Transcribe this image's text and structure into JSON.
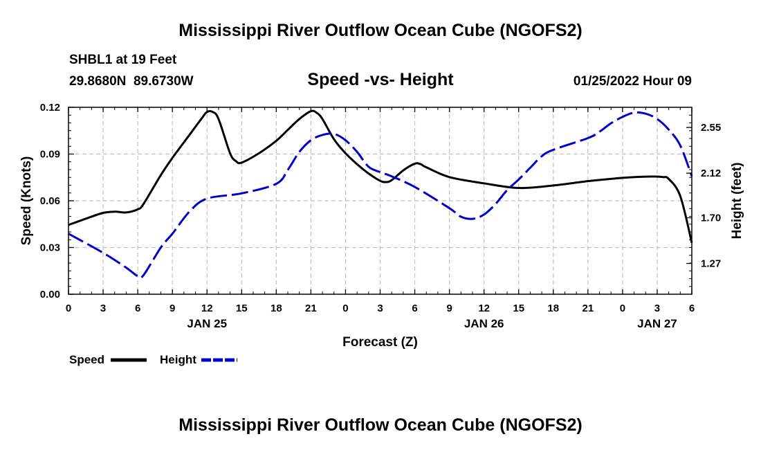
{
  "page": {
    "title_top": "Mississippi River Outflow Ocean Cube (NGOFS2)",
    "title_bottom": "Mississippi River Outflow Ocean Cube (NGOFS2)",
    "station": "SHBL1 at 19 Feet",
    "coords": "29.8680N  89.6730W",
    "subtitle": "Speed -vs- Height",
    "datetime": "01/25/2022 Hour 09"
  },
  "legend": {
    "speed_label": "Speed",
    "height_label": "Height"
  },
  "chart_data": {
    "type": "line",
    "title": "Speed -vs- Height",
    "xlabel": "Forecast (Z)",
    "ylabel": "Speed (Knots)",
    "y2label": "Height (feet)",
    "xlim": [
      0,
      54
    ],
    "ylim": [
      0,
      0.12
    ],
    "y2lim": [
      0.98,
      2.74
    ],
    "x_ticks": [
      0,
      3,
      6,
      9,
      12,
      15,
      18,
      21,
      24,
      27,
      30,
      33,
      36,
      39,
      42,
      45,
      48,
      51,
      54
    ],
    "x_tick_labels": [
      "0",
      "3",
      "6",
      "9",
      "12",
      "15",
      "18",
      "21",
      "0",
      "3",
      "6",
      "9",
      "12",
      "15",
      "18",
      "21",
      "0",
      "3",
      "6"
    ],
    "y_ticks": [
      0,
      0.03,
      0.06,
      0.09,
      0.12
    ],
    "y_tick_labels": [
      "0.00",
      "0.03",
      "0.06",
      "0.09",
      "0.12"
    ],
    "y2_ticks": [
      1.27,
      1.7,
      2.12,
      2.55
    ],
    "y2_tick_labels": [
      "1.27",
      "1.70",
      "2.12",
      "2.55"
    ],
    "date_labels": [
      {
        "x": 12,
        "label": "JAN 25"
      },
      {
        "x": 36,
        "label": "JAN 26"
      },
      {
        "x": 51,
        "label": "JAN 27"
      }
    ],
    "grid": true,
    "series": [
      {
        "name": "Speed",
        "axis": "left",
        "color": "#000000",
        "style": "solid",
        "x": [
          0,
          1.5,
          3,
          4,
          5,
          6,
          6.5,
          8,
          9,
          10.5,
          11.5,
          12,
          12.5,
          13,
          14,
          14.5,
          15,
          16.5,
          18,
          19,
          20,
          21,
          21.5,
          22,
          23,
          24,
          25,
          26,
          27,
          27.5,
          28,
          29,
          30,
          30.5,
          31,
          33,
          36,
          39,
          42,
          45,
          48,
          50,
          51,
          51.5,
          52,
          53,
          54
        ],
        "values": [
          0.0445,
          0.0485,
          0.0522,
          0.053,
          0.0525,
          0.0545,
          0.058,
          0.0765,
          0.0875,
          0.1025,
          0.1125,
          0.117,
          0.117,
          0.1125,
          0.0905,
          0.0855,
          0.0845,
          0.0905,
          0.0985,
          0.1055,
          0.1125,
          0.1175,
          0.1165,
          0.1125,
          0.0995,
          0.0905,
          0.0835,
          0.0775,
          0.0728,
          0.072,
          0.0732,
          0.0795,
          0.0838,
          0.0835,
          0.0815,
          0.0752,
          0.0712,
          0.0682,
          0.0698,
          0.0726,
          0.0747,
          0.0755,
          0.0755,
          0.0752,
          0.074,
          0.063,
          0.033
        ]
      },
      {
        "name": "Height",
        "axis": "right",
        "color": "#0000cc",
        "style": "dashed",
        "x": [
          0,
          3,
          5,
          6,
          6.5,
          8,
          9,
          10.5,
          12,
          15,
          18,
          19,
          20,
          21,
          22,
          23,
          24,
          25,
          26,
          27,
          28,
          30,
          33,
          34,
          35,
          36,
          37,
          38,
          39,
          40,
          41,
          42,
          45,
          46,
          47,
          48,
          49,
          50,
          51,
          52,
          53,
          54
        ],
        "values": [
          1.55,
          1.37,
          1.23,
          1.15,
          1.16,
          1.42,
          1.55,
          1.76,
          1.88,
          1.93,
          2.02,
          2.15,
          2.32,
          2.43,
          2.48,
          2.49,
          2.43,
          2.32,
          2.18,
          2.13,
          2.09,
          1.99,
          1.79,
          1.71,
          1.69,
          1.73,
          1.83,
          1.96,
          2.06,
          2.17,
          2.28,
          2.34,
          2.45,
          2.51,
          2.59,
          2.65,
          2.69,
          2.68,
          2.63,
          2.53,
          2.38,
          2.09
        ]
      }
    ]
  }
}
